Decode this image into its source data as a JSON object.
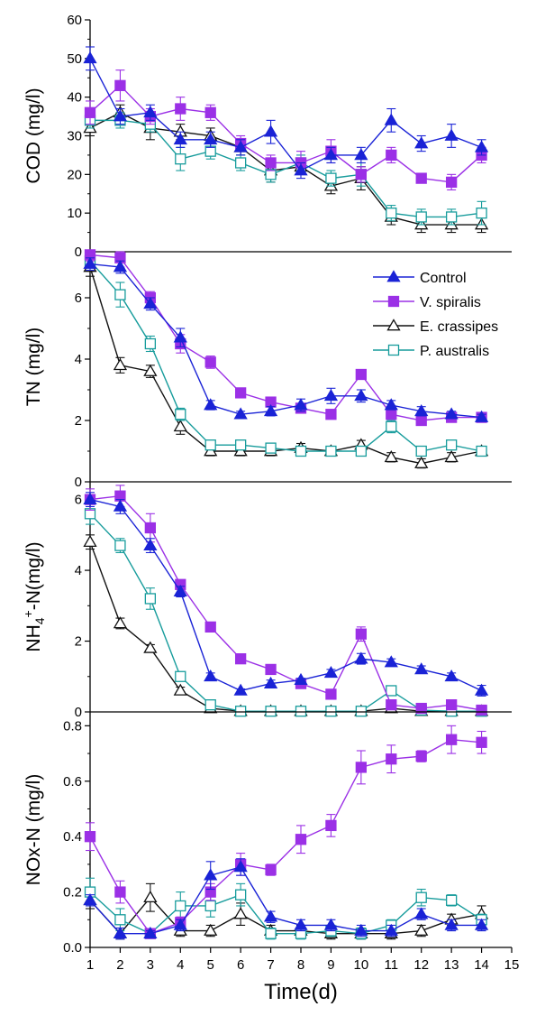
{
  "colors": {
    "Control": "#1a23d6",
    "V. spiralis": "#9b30e6",
    "E. crassipes": "#111111",
    "P. australis": "#179c9c"
  },
  "markers": {
    "Control": "triangle-filled",
    "V. spiralis": "square-filled",
    "E. crassipes": "triangle-open",
    "P. australis": "square-open"
  },
  "legend": {
    "placement": "upper-right of TN panel",
    "entries": [
      "Control",
      "V. spiralis",
      "E. crassipes",
      "P. australis"
    ]
  },
  "chart_data": {
    "type": "line",
    "x_axis": {
      "label": "Time(d)",
      "range": [
        1,
        15
      ],
      "ticks": [
        1,
        2,
        3,
        4,
        5,
        6,
        7,
        8,
        9,
        10,
        11,
        12,
        13,
        14,
        15
      ]
    },
    "x": [
      1,
      2,
      3,
      4,
      5,
      6,
      7,
      8,
      9,
      10,
      11,
      12,
      13,
      14
    ],
    "panels": [
      {
        "ylabel": "COD (mg/l)",
        "ylim": [
          0,
          60
        ],
        "yticks": [
          0,
          10,
          20,
          30,
          40,
          50,
          60
        ],
        "series": [
          {
            "name": "Control",
            "values": [
              50,
              35,
              36,
              29,
              29,
              27,
              31,
              21,
              25,
              25,
              34,
              28,
              30,
              27
            ],
            "errors": [
              3,
              2,
              2,
              2,
              2,
              2,
              3,
              2,
              2,
              2,
              3,
              2,
              3,
              2
            ]
          },
          {
            "name": "V. spiralis",
            "values": [
              36,
              43,
              35,
              37,
              36,
              28,
              23,
              23,
              26,
              20,
              25,
              19,
              18,
              25
            ],
            "errors": [
              3,
              4,
              2,
              3,
              2,
              2,
              2,
              3,
              3,
              2,
              2,
              1,
              2,
              2
            ]
          },
          {
            "name": "E. crassipes",
            "values": [
              32,
              36,
              32,
              31,
              30,
              27,
              21,
              22,
              17,
              19,
              9,
              7,
              7,
              7
            ],
            "errors": [
              2,
              2,
              3,
              2,
              2,
              2,
              3,
              2,
              2,
              3,
              2,
              2,
              2,
              2
            ]
          },
          {
            "name": "P. australis",
            "values": [
              34,
              34,
              33,
              24,
              26,
              23,
              20,
              23,
              19,
              20,
              10,
              9,
              9,
              10
            ],
            "errors": [
              2,
              2,
              2,
              3,
              2,
              2,
              2,
              2,
              2,
              3,
              2,
              2,
              2,
              3
            ]
          }
        ]
      },
      {
        "ylabel": "TN (mg/l)",
        "ylim": [
          0,
          7.5
        ],
        "yticks": [
          0,
          2,
          4,
          6
        ],
        "series": [
          {
            "name": "Control",
            "values": [
              7.1,
              7.0,
              5.8,
              4.7,
              2.5,
              2.2,
              2.3,
              2.5,
              2.8,
              2.8,
              2.5,
              2.3,
              2.2,
              2.1
            ],
            "errors": [
              0.2,
              0.2,
              0.2,
              0.3,
              0.15,
              0.1,
              0.15,
              0.2,
              0.25,
              0.2,
              0.15,
              0.15,
              0.1,
              0.1
            ]
          },
          {
            "name": "V. spiralis",
            "values": [
              7.4,
              7.3,
              6.0,
              4.5,
              3.9,
              2.9,
              2.6,
              2.4,
              2.2,
              3.5,
              2.2,
              2.0,
              2.1,
              2.1
            ],
            "errors": [
              0.2,
              0.3,
              0.2,
              0.3,
              0.2,
              0.15,
              0.15,
              0.15,
              0.15,
              0.15,
              0.15,
              0.15,
              0.1,
              0.1
            ]
          },
          {
            "name": "E. crassipes",
            "values": [
              7.0,
              3.8,
              3.6,
              1.8,
              1.0,
              1.0,
              1.0,
              1.1,
              1.0,
              1.2,
              0.8,
              0.6,
              0.8,
              1.0
            ],
            "errors": [
              0.3,
              0.25,
              0.2,
              0.25,
              0.15,
              0.15,
              0.15,
              0.15,
              0.15,
              0.15,
              0.15,
              0.15,
              0.15,
              0.1
            ]
          },
          {
            "name": "P. australis",
            "values": [
              7.2,
              6.1,
              4.5,
              2.2,
              1.2,
              1.2,
              1.1,
              1.0,
              1.0,
              1.0,
              1.8,
              1.0,
              1.2,
              1.0
            ],
            "errors": [
              0.2,
              0.4,
              0.25,
              0.2,
              0.15,
              0.15,
              0.15,
              0.1,
              0.1,
              0.15,
              0.2,
              0.1,
              0.1,
              0.1
            ]
          }
        ]
      },
      {
        "ylabel": "NH4+-N(mg/l)",
        "ylim": [
          0,
          6.5
        ],
        "yticks": [
          0,
          2,
          4,
          6
        ],
        "series": [
          {
            "name": "Control",
            "values": [
              6.0,
              5.8,
              4.7,
              3.4,
              1.0,
              0.6,
              0.8,
              0.9,
              1.1,
              1.5,
              1.4,
              1.2,
              1.0,
              0.6
            ],
            "errors": [
              0.2,
              0.2,
              0.2,
              0.15,
              0.1,
              0.05,
              0.1,
              0.05,
              0.1,
              0.15,
              0.1,
              0.1,
              0.1,
              0.15
            ]
          },
          {
            "name": "V. spiralis",
            "values": [
              6.0,
              6.1,
              5.2,
              3.6,
              2.4,
              1.5,
              1.2,
              0.8,
              0.5,
              2.2,
              0.2,
              0.1,
              0.2,
              0.05
            ],
            "errors": [
              0.3,
              0.3,
              0.4,
              0.1,
              0.1,
              0.1,
              0.05,
              0.05,
              0.05,
              0.2,
              0.1,
              0.05,
              0.05,
              0.02
            ]
          },
          {
            "name": "E. crassipes",
            "values": [
              4.8,
              2.5,
              1.8,
              0.6,
              0.1,
              0.02,
              0.02,
              0.02,
              0.02,
              0.02,
              0.1,
              0.02,
              0.02,
              0.02
            ],
            "errors": [
              0.2,
              0.15,
              0.1,
              0.1,
              0.05,
              0.02,
              0.02,
              0.02,
              0.02,
              0.02,
              0.05,
              0.02,
              0.02,
              0.02
            ]
          },
          {
            "name": "P. australis",
            "values": [
              5.6,
              4.7,
              3.2,
              1.0,
              0.2,
              0.02,
              0.02,
              0.02,
              0.02,
              0.02,
              0.6,
              0.05,
              0.02,
              0.02
            ],
            "errors": [
              0.3,
              0.2,
              0.3,
              0.1,
              0.05,
              0.02,
              0.02,
              0.02,
              0.02,
              0.02,
              0.1,
              0.02,
              0.02,
              0.02
            ]
          }
        ]
      },
      {
        "ylabel": "NOx-N (mg/l)",
        "ylim": [
          0,
          0.85
        ],
        "yticks": [
          0.0,
          0.2,
          0.4,
          0.6,
          0.8
        ],
        "series": [
          {
            "name": "Control",
            "values": [
              0.17,
              0.05,
              0.05,
              0.08,
              0.26,
              0.29,
              0.11,
              0.08,
              0.08,
              0.06,
              0.06,
              0.12,
              0.08,
              0.08
            ],
            "errors": [
              0.02,
              0.02,
              0.01,
              0.02,
              0.05,
              0.03,
              0.02,
              0.02,
              0.02,
              0.02,
              0.02,
              0.02,
              0.02,
              0.02
            ]
          },
          {
            "name": "V. spiralis",
            "values": [
              0.4,
              0.2,
              0.05,
              0.09,
              0.2,
              0.3,
              0.28,
              0.39,
              0.44,
              0.65,
              0.68,
              0.69,
              0.75,
              0.74
            ],
            "errors": [
              0.05,
              0.04,
              0.01,
              0.02,
              0.03,
              0.04,
              0.02,
              0.05,
              0.04,
              0.06,
              0.05,
              0.02,
              0.05,
              0.04
            ]
          },
          {
            "name": "E. crassipes",
            "values": [
              0.17,
              0.05,
              0.18,
              0.06,
              0.06,
              0.12,
              0.06,
              0.06,
              0.05,
              0.05,
              0.05,
              0.06,
              0.1,
              0.12
            ],
            "errors": [
              0.03,
              0.02,
              0.05,
              0.02,
              0.02,
              0.04,
              0.02,
              0.02,
              0.02,
              0.02,
              0.02,
              0.02,
              0.02,
              0.03
            ]
          },
          {
            "name": "P. australis",
            "values": [
              0.2,
              0.1,
              0.05,
              0.15,
              0.15,
              0.19,
              0.05,
              0.05,
              0.06,
              0.05,
              0.08,
              0.18,
              0.17,
              0.1
            ],
            "errors": [
              0.05,
              0.04,
              0.01,
              0.05,
              0.04,
              0.04,
              0.02,
              0.02,
              0.02,
              0.02,
              0.02,
              0.03,
              0.02,
              0.02
            ]
          }
        ]
      }
    ]
  }
}
